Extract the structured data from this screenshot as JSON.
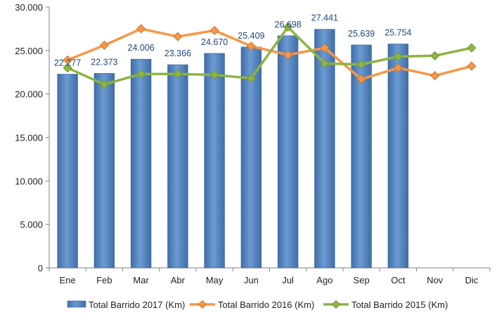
{
  "chart_data": {
    "type": "bar",
    "categories": [
      "Ene",
      "Feb",
      "Mar",
      "Abr",
      "May",
      "Jun",
      "Jul",
      "Ago",
      "Sep",
      "Oct",
      "Nov",
      "Dic"
    ],
    "ylim": [
      0,
      30000
    ],
    "yticks": [
      0,
      5000,
      10000,
      15000,
      20000,
      25000,
      30000
    ],
    "ytick_labels": [
      "0",
      "5.000",
      "10.000",
      "15.000",
      "20.000",
      "25.000",
      "30.000"
    ],
    "grid": false,
    "legend_position": "bottom",
    "series": [
      {
        "name": "Total Barrido 2017 (Km)",
        "type": "bar",
        "color": "#4F81BD",
        "values": [
          22277,
          22373,
          24006,
          23366,
          24670,
          25409,
          26698,
          27441,
          25639,
          25754,
          null,
          null
        ],
        "data_labels": [
          "22.277",
          "22.373",
          "24.006",
          "23.366",
          "24.670",
          "25.409",
          "26.698",
          "27.441",
          "25.639",
          "25.754",
          "",
          ""
        ]
      },
      {
        "name": "Total Barrido 2016 (Km)",
        "type": "line",
        "marker": "diamond",
        "color": "#F79646",
        "values": [
          23900,
          25600,
          27500,
          26600,
          27300,
          25500,
          24500,
          25300,
          21700,
          23000,
          22100,
          23200
        ]
      },
      {
        "name": "Total Barrido 2015 (Km)",
        "type": "line",
        "marker": "diamond",
        "color": "#8DB444",
        "values": [
          23000,
          21100,
          22300,
          22300,
          22200,
          21800,
          27700,
          23500,
          23400,
          24300,
          24400,
          25300
        ]
      }
    ]
  }
}
